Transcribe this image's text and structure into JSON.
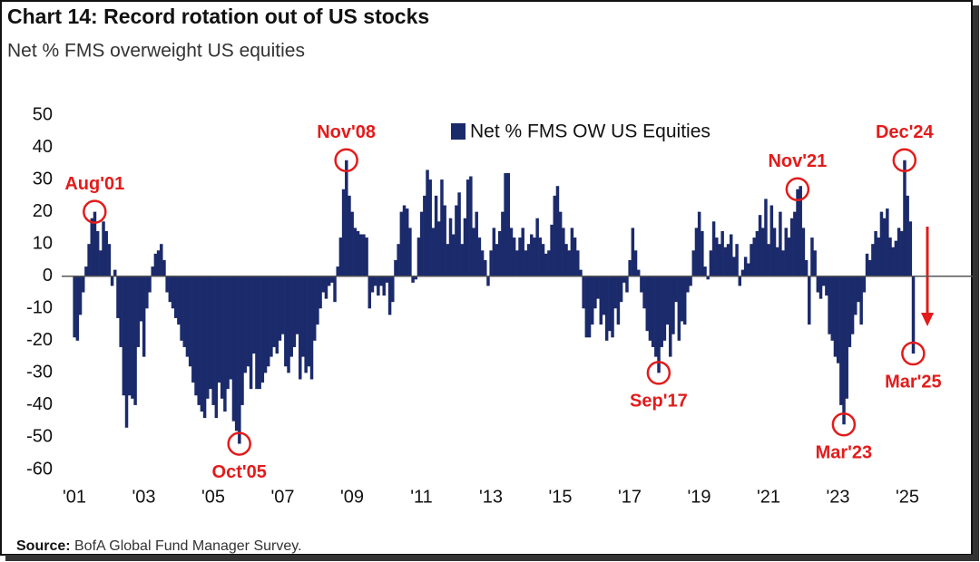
{
  "chart_data": {
    "type": "bar",
    "title": "Chart 14: Record rotation out of US stocks",
    "subtitle": "Net % FMS overweight US equities",
    "source_label": "Source:",
    "source": "BofA Global Fund Manager Survey.",
    "series": [
      {
        "name": "Net % FMS OW US Equities",
        "color": "#1b2a6b",
        "values": [
          -19,
          -20,
          -12,
          -5,
          3,
          10,
          18,
          20,
          14,
          8,
          17,
          14,
          10,
          -3,
          2,
          -13,
          -22,
          -37,
          -47,
          -37,
          -38,
          -40,
          -22,
          -14,
          -25,
          -10,
          -5,
          3,
          7,
          8,
          10,
          5,
          -5,
          -8,
          -10,
          -13,
          -15,
          -20,
          -22,
          -25,
          -28,
          -33,
          -37,
          -40,
          -42,
          -44,
          -38,
          -35,
          -40,
          -44,
          -33,
          -38,
          -42,
          -35,
          -32,
          -45,
          -48,
          -52,
          -40,
          -30,
          -28,
          -35,
          -24,
          -35,
          -35,
          -33,
          -30,
          -28,
          -25,
          -22,
          -24,
          -20,
          -18,
          -28,
          -30,
          -25,
          -22,
          -18,
          -32,
          -25,
          -30,
          -28,
          -32,
          -20,
          -15,
          -10,
          -5,
          -7,
          -3,
          -2,
          -8,
          3,
          12,
          27,
          36,
          25,
          20,
          15,
          14,
          13,
          13,
          12,
          -10,
          -5,
          -3,
          -6,
          -3,
          -6,
          -2,
          -12,
          -8,
          5,
          10,
          20,
          22,
          21,
          15,
          -2,
          -1,
          12,
          20,
          25,
          33,
          30,
          15,
          25,
          17,
          30,
          22,
          10,
          18,
          13,
          22,
          26,
          10,
          18,
          30,
          31,
          15,
          20,
          12,
          8,
          5,
          -3,
          8,
          15,
          10,
          14,
          20,
          32,
          32,
          15,
          12,
          8,
          12,
          15,
          8,
          10,
          13,
          12,
          18,
          12,
          10,
          7,
          8,
          16,
          25,
          28,
          20,
          15,
          10,
          8,
          15,
          12,
          8,
          2,
          -10,
          -19,
          -19,
          -15,
          -10,
          -7,
          -15,
          -12,
          -20,
          -17,
          -19,
          -10,
          -15,
          -8,
          -2,
          -5,
          5,
          15,
          8,
          2,
          -5,
          -10,
          -17,
          -20,
          -22,
          -25,
          -30,
          -22,
          -20,
          -15,
          -25,
          -18,
          -8,
          -20,
          -14,
          -15,
          -5,
          -3,
          8,
          15,
          20,
          14,
          3,
          -1,
          8,
          17,
          12,
          10,
          14,
          9,
          10,
          13,
          6,
          10,
          -3,
          2,
          6,
          4,
          10,
          12,
          14,
          19,
          15,
          24,
          10,
          22,
          15,
          9,
          20,
          8,
          15,
          12,
          18,
          20,
          27,
          28,
          15,
          5,
          -15,
          12,
          8,
          -5,
          -7,
          -3,
          -6,
          -18,
          -20,
          -25,
          -27,
          -40,
          -46,
          -38,
          -22,
          -18,
          -12,
          -8,
          -15,
          -5,
          7,
          5,
          10,
          14,
          12,
          20,
          18,
          21,
          12,
          9,
          11,
          15,
          14,
          36,
          25,
          17,
          -24
        ]
      }
    ],
    "categories": [
      "'01",
      null,
      null,
      null,
      null,
      null,
      null,
      null,
      null,
      null,
      null,
      null,
      null,
      null,
      null,
      null,
      null,
      null,
      null,
      null,
      null,
      null,
      null,
      null,
      "'03",
      null,
      null,
      null,
      null,
      null,
      null,
      null,
      null,
      null,
      null,
      null,
      null,
      null,
      null,
      null,
      null,
      null,
      null,
      null,
      null,
      null,
      null,
      null,
      "'05",
      null,
      null,
      null,
      null,
      null,
      null,
      null,
      null,
      null,
      null,
      null,
      null,
      null,
      null,
      null,
      null,
      null,
      null,
      null,
      null,
      null,
      null,
      null,
      "'07",
      null,
      null,
      null,
      null,
      null,
      null,
      null,
      null,
      null,
      null,
      null,
      null,
      null,
      null,
      null,
      null,
      null,
      null,
      null,
      null,
      null,
      null,
      null,
      "'09",
      null,
      null,
      null,
      null,
      null,
      null,
      null,
      null,
      null,
      null,
      null,
      null,
      null,
      null,
      null,
      null,
      null,
      null,
      null,
      null,
      null,
      null,
      null,
      "'11",
      null,
      null,
      null,
      null,
      null,
      null,
      null,
      null,
      null,
      null,
      null,
      null,
      null,
      null,
      null,
      null,
      null,
      null,
      null,
      null,
      null,
      null,
      null,
      "'13",
      null,
      null,
      null,
      null,
      null,
      null,
      null,
      null,
      null,
      null,
      null,
      null,
      null,
      null,
      null,
      null,
      null,
      null,
      null,
      null,
      null,
      null,
      null,
      "'15",
      null,
      null,
      null,
      null,
      null,
      null,
      null,
      null,
      null,
      null,
      null,
      null,
      null,
      null,
      null,
      null,
      null,
      null,
      null,
      null,
      null,
      null,
      null,
      "'17",
      null,
      null,
      null,
      null,
      null,
      null,
      null,
      null,
      null,
      null,
      null,
      null,
      null,
      null,
      null,
      null,
      null,
      null,
      null,
      null,
      null,
      null,
      null,
      "'19",
      null,
      null,
      null,
      null,
      null,
      null,
      null,
      null,
      null,
      null,
      null,
      null,
      null,
      null,
      null,
      null,
      null,
      null,
      null,
      null,
      null,
      null,
      null,
      "'21",
      null,
      null,
      null,
      null,
      null,
      null,
      null,
      null,
      null,
      null,
      null,
      null,
      null,
      null,
      null,
      null,
      null,
      null,
      null,
      null,
      null,
      null,
      null,
      "'23",
      null,
      null,
      null,
      null,
      null,
      null,
      null,
      null,
      null,
      null,
      null,
      null,
      null,
      null,
      null,
      null,
      null,
      null,
      null,
      null,
      null,
      null,
      null,
      "'25",
      null,
      null
    ],
    "ylim": [
      -60,
      50
    ],
    "yticks": [
      -60,
      -50,
      -40,
      -30,
      -20,
      -10,
      0,
      10,
      20,
      30,
      40,
      50
    ],
    "legend": "top",
    "annotation_color": "#e31b1b",
    "annotations": [
      {
        "label": "Aug'01",
        "index": 7
      },
      {
        "label": "Oct'05",
        "index": 57
      },
      {
        "label": "Nov'08",
        "index": 94
      },
      {
        "label": "Sep'17",
        "index": 202
      },
      {
        "label": "Nov'21",
        "index": 250
      },
      {
        "label": "Mar'23",
        "index": 266
      },
      {
        "label": "Dec'24",
        "index": 287
      },
      {
        "label": "Mar'25",
        "index": 290
      }
    ]
  }
}
